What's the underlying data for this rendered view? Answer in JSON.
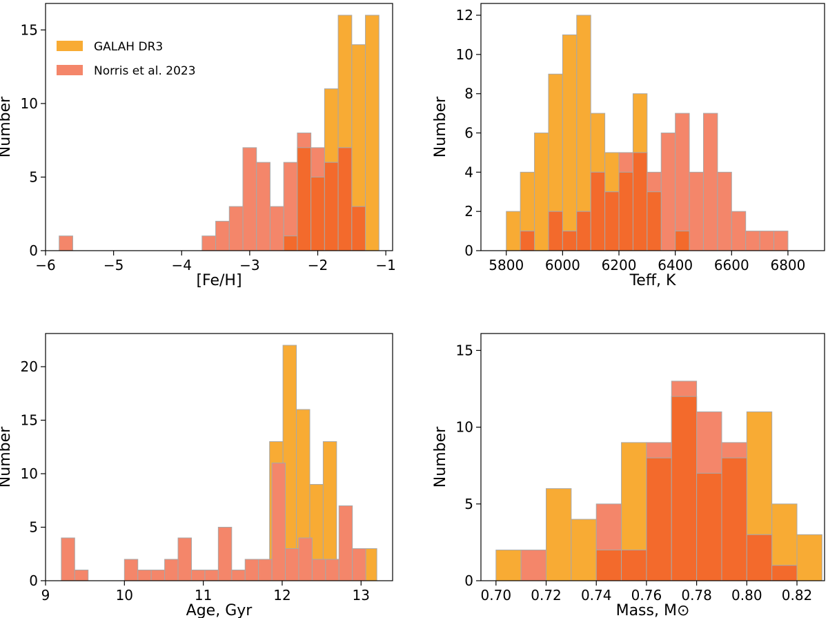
{
  "chart_data": [
    {
      "type": "bar",
      "subtype": "overlaid-histogram",
      "xlabel": "[Fe/H]",
      "ylabel": "Number",
      "xlim": [
        -6.0,
        -0.9
      ],
      "ylim": [
        0,
        16.8
      ],
      "xticks": [
        -6,
        -5,
        -4,
        -3,
        -2,
        -1
      ],
      "xtick_labels": [
        "−6",
        "−5",
        "−4",
        "−3",
        "−2",
        "−1"
      ],
      "yticks": [
        0,
        5,
        10,
        15
      ],
      "ytick_labels": [
        "0",
        "5",
        "10",
        "15"
      ],
      "legend": {
        "location": "top-left",
        "entries": [
          {
            "label": "GALAH DR3",
            "color": "#f8ab34"
          },
          {
            "label": "Norris et al. 2023",
            "color": "#f4866a"
          }
        ]
      },
      "series": [
        {
          "name": "GALAH DR3",
          "color": "#f8ab34",
          "bins": [
            {
              "x0": -2.5,
              "x1": -2.3,
              "value": 1
            },
            {
              "x0": -2.3,
              "x1": -2.1,
              "value": 7
            },
            {
              "x0": -2.1,
              "x1": -1.9,
              "value": 5
            },
            {
              "x0": -1.9,
              "x1": -1.7,
              "value": 11
            },
            {
              "x0": -1.7,
              "x1": -1.5,
              "value": 16
            },
            {
              "x0": -1.5,
              "x1": -1.3,
              "value": 14
            },
            {
              "x0": -1.3,
              "x1": -1.1,
              "value": 16
            }
          ]
        },
        {
          "name": "Norris et al. 2023",
          "color": "#f4866a",
          "bins": [
            {
              "x0": -5.8,
              "x1": -5.6,
              "value": 1
            },
            {
              "x0": -3.7,
              "x1": -3.5,
              "value": 1
            },
            {
              "x0": -3.5,
              "x1": -3.3,
              "value": 2
            },
            {
              "x0": -3.3,
              "x1": -3.1,
              "value": 3
            },
            {
              "x0": -3.1,
              "x1": -2.9,
              "value": 7
            },
            {
              "x0": -2.9,
              "x1": -2.7,
              "value": 6
            },
            {
              "x0": -2.7,
              "x1": -2.5,
              "value": 3
            },
            {
              "x0": -2.5,
              "x1": -2.3,
              "value": 6
            },
            {
              "x0": -2.3,
              "x1": -2.1,
              "value": 8
            },
            {
              "x0": -2.1,
              "x1": -1.9,
              "value": 7
            },
            {
              "x0": -1.9,
              "x1": -1.7,
              "value": 6
            },
            {
              "x0": -1.7,
              "x1": -1.5,
              "value": 7
            },
            {
              "x0": -1.5,
              "x1": -1.3,
              "value": 3
            }
          ]
        }
      ]
    },
    {
      "type": "bar",
      "subtype": "overlaid-histogram",
      "xlabel": "Teff, K",
      "ylabel": "Number",
      "xlim": [
        5710,
        6930
      ],
      "ylim": [
        0,
        12.6
      ],
      "xticks": [
        5800,
        6000,
        6200,
        6400,
        6600,
        6800
      ],
      "xtick_labels": [
        "5800",
        "6000",
        "6200",
        "6400",
        "6600",
        "6800"
      ],
      "yticks": [
        0,
        2,
        4,
        6,
        8,
        10,
        12
      ],
      "ytick_labels": [
        "0",
        "2",
        "4",
        "6",
        "8",
        "10",
        "12"
      ],
      "series": [
        {
          "name": "GALAH DR3",
          "color": "#f8ab34",
          "bins": [
            {
              "x0": 5800,
              "x1": 5850,
              "value": 2
            },
            {
              "x0": 5850,
              "x1": 5900,
              "value": 4
            },
            {
              "x0": 5900,
              "x1": 5950,
              "value": 6
            },
            {
              "x0": 5950,
              "x1": 6000,
              "value": 9
            },
            {
              "x0": 6000,
              "x1": 6050,
              "value": 11
            },
            {
              "x0": 6050,
              "x1": 6100,
              "value": 12
            },
            {
              "x0": 6100,
              "x1": 6150,
              "value": 7
            },
            {
              "x0": 6150,
              "x1": 6200,
              "value": 5
            },
            {
              "x0": 6200,
              "x1": 6250,
              "value": 4
            },
            {
              "x0": 6250,
              "x1": 6300,
              "value": 8
            },
            {
              "x0": 6300,
              "x1": 6350,
              "value": 3
            },
            {
              "x0": 6400,
              "x1": 6450,
              "value": 1
            }
          ]
        },
        {
          "name": "Norris et al. 2023",
          "color": "#f4866a",
          "bins": [
            {
              "x0": 5850,
              "x1": 5900,
              "value": 1
            },
            {
              "x0": 5950,
              "x1": 6000,
              "value": 2
            },
            {
              "x0": 6000,
              "x1": 6050,
              "value": 1
            },
            {
              "x0": 6050,
              "x1": 6100,
              "value": 2
            },
            {
              "x0": 6100,
              "x1": 6150,
              "value": 4
            },
            {
              "x0": 6150,
              "x1": 6200,
              "value": 3
            },
            {
              "x0": 6200,
              "x1": 6250,
              "value": 5
            },
            {
              "x0": 6250,
              "x1": 6300,
              "value": 5
            },
            {
              "x0": 6300,
              "x1": 6350,
              "value": 4
            },
            {
              "x0": 6350,
              "x1": 6400,
              "value": 6
            },
            {
              "x0": 6400,
              "x1": 6450,
              "value": 7
            },
            {
              "x0": 6450,
              "x1": 6500,
              "value": 4
            },
            {
              "x0": 6500,
              "x1": 6550,
              "value": 7
            },
            {
              "x0": 6550,
              "x1": 6600,
              "value": 4
            },
            {
              "x0": 6600,
              "x1": 6650,
              "value": 2
            },
            {
              "x0": 6650,
              "x1": 6700,
              "value": 1
            },
            {
              "x0": 6700,
              "x1": 6750,
              "value": 1
            },
            {
              "x0": 6750,
              "x1": 6800,
              "value": 1
            }
          ]
        }
      ]
    },
    {
      "type": "bar",
      "subtype": "overlaid-histogram",
      "xlabel": "Age, Gyr",
      "ylabel": "Number",
      "xlim": [
        9.0,
        13.4
      ],
      "ylim": [
        0,
        23.1
      ],
      "xticks": [
        9,
        10,
        11,
        12,
        13
      ],
      "xtick_labels": [
        "9",
        "10",
        "11",
        "12",
        "13"
      ],
      "yticks": [
        0,
        5,
        10,
        15,
        20
      ],
      "ytick_labels": [
        "0",
        "5",
        "10",
        "15",
        "20"
      ],
      "series": [
        {
          "name": "GALAH DR3",
          "color": "#f8ab34",
          "bins": [
            {
              "x0": 11.84,
              "x1": 12.01,
              "value": 13
            },
            {
              "x0": 12.01,
              "x1": 12.18,
              "value": 22
            },
            {
              "x0": 12.18,
              "x1": 12.35,
              "value": 16
            },
            {
              "x0": 12.35,
              "x1": 12.52,
              "value": 9
            },
            {
              "x0": 12.52,
              "x1": 12.69,
              "value": 13
            },
            {
              "x0": 12.69,
              "x1": 12.86,
              "value": 2
            },
            {
              "x0": 12.86,
              "x1": 13.03,
              "value": 2
            },
            {
              "x0": 13.03,
              "x1": 13.2,
              "value": 3
            }
          ]
        },
        {
          "name": "Norris et al. 2023",
          "color": "#f4866a",
          "bins": [
            {
              "x0": 9.2,
              "x1": 9.37,
              "value": 4
            },
            {
              "x0": 9.37,
              "x1": 9.54,
              "value": 1
            },
            {
              "x0": 10.0,
              "x1": 10.17,
              "value": 2
            },
            {
              "x0": 10.17,
              "x1": 10.34,
              "value": 1
            },
            {
              "x0": 10.34,
              "x1": 10.51,
              "value": 1
            },
            {
              "x0": 10.51,
              "x1": 10.68,
              "value": 2
            },
            {
              "x0": 10.68,
              "x1": 10.85,
              "value": 4
            },
            {
              "x0": 10.85,
              "x1": 11.02,
              "value": 1
            },
            {
              "x0": 11.02,
              "x1": 11.19,
              "value": 1
            },
            {
              "x0": 11.19,
              "x1": 11.36,
              "value": 5
            },
            {
              "x0": 11.36,
              "x1": 11.53,
              "value": 1
            },
            {
              "x0": 11.53,
              "x1": 11.7,
              "value": 2
            },
            {
              "x0": 11.7,
              "x1": 11.87,
              "value": 2
            },
            {
              "x0": 11.87,
              "x1": 12.04,
              "value": 11
            },
            {
              "x0": 12.04,
              "x1": 12.21,
              "value": 3
            },
            {
              "x0": 12.21,
              "x1": 12.38,
              "value": 4
            },
            {
              "x0": 12.38,
              "x1": 12.55,
              "value": 2
            },
            {
              "x0": 12.55,
              "x1": 12.72,
              "value": 2
            },
            {
              "x0": 12.72,
              "x1": 12.89,
              "value": 7
            },
            {
              "x0": 12.89,
              "x1": 13.06,
              "value": 3
            }
          ]
        }
      ]
    },
    {
      "type": "bar",
      "subtype": "overlaid-histogram",
      "xlabel": "Mass, M⊙",
      "ylabel": "Number",
      "xlim": [
        0.694,
        0.831
      ],
      "ylim": [
        0,
        16.1
      ],
      "xticks": [
        0.7,
        0.72,
        0.74,
        0.76,
        0.78,
        0.8,
        0.82
      ],
      "xtick_labels": [
        "0.70",
        "0.72",
        "0.74",
        "0.76",
        "0.78",
        "0.80",
        "0.82"
      ],
      "yticks": [
        0,
        5,
        10,
        15
      ],
      "ytick_labels": [
        "0",
        "5",
        "10",
        "15"
      ],
      "series": [
        {
          "name": "GALAH DR3",
          "color": "#f8ab34",
          "bins": [
            {
              "x0": 0.7,
              "x1": 0.71,
              "value": 2
            },
            {
              "x0": 0.72,
              "x1": 0.73,
              "value": 6
            },
            {
              "x0": 0.73,
              "x1": 0.74,
              "value": 4
            },
            {
              "x0": 0.74,
              "x1": 0.75,
              "value": 2
            },
            {
              "x0": 0.75,
              "x1": 0.76,
              "value": 9
            },
            {
              "x0": 0.76,
              "x1": 0.77,
              "value": 8
            },
            {
              "x0": 0.77,
              "x1": 0.78,
              "value": 12
            },
            {
              "x0": 0.78,
              "x1": 0.79,
              "value": 7
            },
            {
              "x0": 0.79,
              "x1": 0.8,
              "value": 8
            },
            {
              "x0": 0.8,
              "x1": 0.81,
              "value": 11
            },
            {
              "x0": 0.81,
              "x1": 0.82,
              "value": 5
            },
            {
              "x0": 0.82,
              "x1": 0.83,
              "value": 3
            }
          ]
        },
        {
          "name": "Norris et al. 2023",
          "color": "#f4866a",
          "bins": [
            {
              "x0": 0.71,
              "x1": 0.72,
              "value": 2
            },
            {
              "x0": 0.74,
              "x1": 0.75,
              "value": 5
            },
            {
              "x0": 0.75,
              "x1": 0.76,
              "value": 2
            },
            {
              "x0": 0.76,
              "x1": 0.77,
              "value": 9
            },
            {
              "x0": 0.77,
              "x1": 0.78,
              "value": 13
            },
            {
              "x0": 0.78,
              "x1": 0.79,
              "value": 11
            },
            {
              "x0": 0.79,
              "x1": 0.8,
              "value": 9
            },
            {
              "x0": 0.8,
              "x1": 0.81,
              "value": 3
            },
            {
              "x0": 0.81,
              "x1": 0.82,
              "value": 1
            }
          ]
        }
      ]
    }
  ],
  "colors": {
    "overlap": "#f36a2c",
    "edge": "#a8a8a8"
  }
}
